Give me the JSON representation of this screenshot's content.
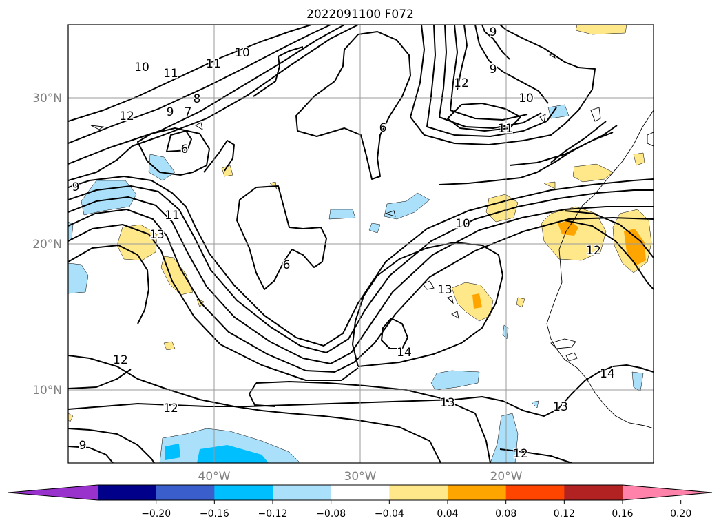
{
  "title": "2022091100 F072",
  "map": {
    "lat_labels": [
      {
        "id": "30n",
        "text": "30°N"
      },
      {
        "id": "20n",
        "text": "20°N"
      },
      {
        "id": "10n",
        "text": "10°N"
      }
    ],
    "lon_labels": [
      {
        "id": "40w",
        "text": "40°W"
      },
      {
        "id": "30w",
        "text": "30°W"
      },
      {
        "id": "20w",
        "text": "20°W"
      }
    ],
    "contour_labels": [
      "10",
      "11",
      "12",
      "9",
      "8",
      "7",
      "6",
      "11",
      "10",
      "9",
      "12",
      "9",
      "6",
      "9",
      "11",
      "13",
      "6",
      "10",
      "12",
      "13",
      "14",
      "12",
      "13",
      "12",
      "14",
      "13",
      "12",
      "10",
      "11",
      "9"
    ],
    "fill_colors": {
      "light_blue": "#abe0fb",
      "blue": "#00bfff",
      "light_yellow": "#ffe88a",
      "orange": "#ffa500"
    }
  },
  "colorbar": {
    "ticks": [
      "−0.20",
      "−0.16",
      "−0.12",
      "−0.08",
      "−0.04",
      "0.04",
      "0.08",
      "0.12",
      "0.16",
      "0.20"
    ],
    "colors": [
      "#9932cc",
      "#00008b",
      "#3a5fcd",
      "#00bfff",
      "#abe0fb",
      "#ffffff",
      "#ffe88a",
      "#ffa500",
      "#ff4500",
      "#b22222",
      "#ff82ab"
    ]
  }
}
